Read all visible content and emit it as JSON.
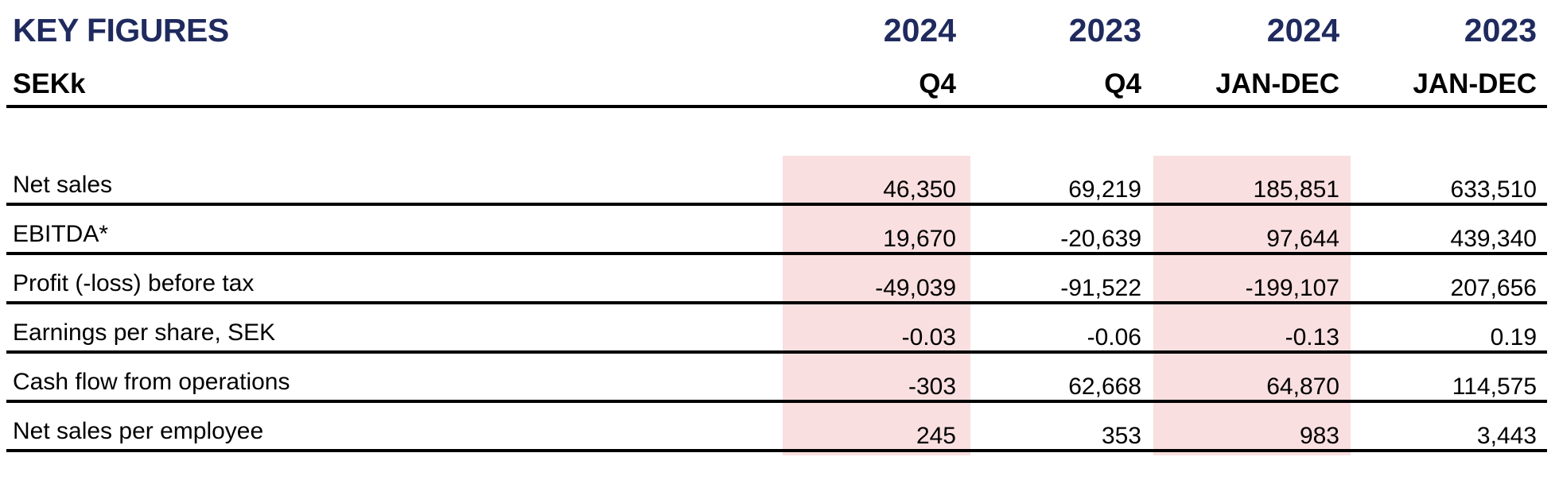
{
  "header": {
    "title": "KEY FIGURES",
    "unit": "SEKk",
    "columns": [
      {
        "year": "2024",
        "period": "Q4"
      },
      {
        "year": "2023",
        "period": "Q4"
      },
      {
        "year": "2024",
        "period": "JAN-DEC"
      },
      {
        "year": "2023",
        "period": "JAN-DEC"
      }
    ]
  },
  "rows": [
    {
      "label": "Net sales",
      "values": [
        "46,350",
        "69,219",
        "185,851",
        "633,510"
      ]
    },
    {
      "label": "EBITDA*",
      "values": [
        "19,670",
        "-20,639",
        "97,644",
        "439,340"
      ]
    },
    {
      "label": "Profit (-loss) before tax",
      "values": [
        "-49,039",
        "-91,522",
        "-199,107",
        "207,656"
      ]
    },
    {
      "label": "Earnings per share, SEK",
      "values": [
        "-0.03",
        "-0.06",
        "-0.13",
        "0.19"
      ]
    },
    {
      "label": "Cash flow from operations",
      "values": [
        "-303",
        "62,668",
        "64,870",
        "114,575"
      ]
    },
    {
      "label": "Net sales per employee",
      "values": [
        "245",
        "353",
        "983",
        "3,443"
      ]
    }
  ],
  "colors": {
    "title": "#1f2a5e",
    "highlight_column_fill": "#f9dfe0"
  }
}
